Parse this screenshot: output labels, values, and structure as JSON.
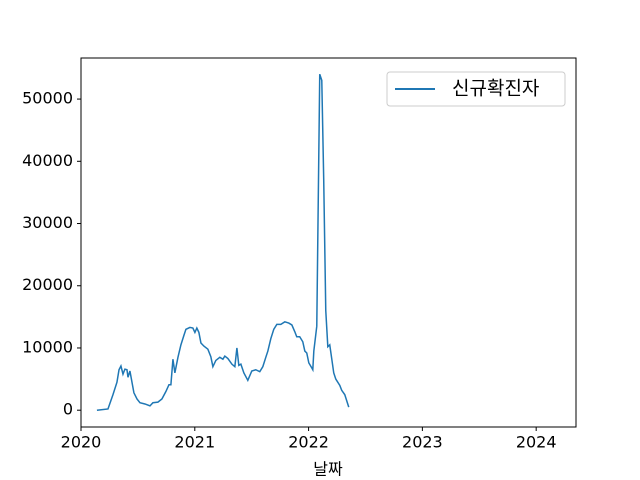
{
  "chart_data": {
    "type": "line",
    "xlabel": "날짜",
    "xlim": [
      2020,
      2024.35
    ],
    "xticks": [
      2020,
      2021,
      2022,
      2023,
      2024
    ],
    "ylim": [
      -2700,
      56600
    ],
    "yticks": [
      0,
      10000,
      20000,
      30000,
      40000,
      50000
    ],
    "legend": "upper right",
    "series": [
      {
        "name": "신규확진자",
        "color": "#1f77b4",
        "x": [
          2020.14,
          2020.237,
          2020.281,
          2020.316,
          2020.334,
          2020.351,
          2020.369,
          2020.386,
          2020.404,
          2020.413,
          2020.43,
          2020.448,
          2020.465,
          2020.492,
          2020.518,
          2020.562,
          2020.606,
          2020.632,
          2020.676,
          2020.711,
          2020.746,
          2020.773,
          2020.79,
          2020.808,
          2020.825,
          2020.852,
          2020.878,
          2020.904,
          2020.922,
          2020.957,
          2020.983,
          2021.001,
          2021.018,
          2021.036,
          2021.054,
          2021.08,
          2021.115,
          2021.141,
          2021.159,
          2021.185,
          2021.22,
          2021.247,
          2021.264,
          2021.291,
          2021.326,
          2021.352,
          2021.37,
          2021.387,
          2021.405,
          2021.431,
          2021.466,
          2021.501,
          2021.536,
          2021.571,
          2021.598,
          2021.624,
          2021.642,
          2021.668,
          2021.694,
          2021.721,
          2021.756,
          2021.791,
          2021.826,
          2021.853,
          2021.879,
          2021.896,
          2021.922,
          2021.949,
          2021.967,
          2021.984,
          2022.002,
          2022.028,
          2022.037,
          2022.046,
          2022.072,
          2022.098,
          2022.116,
          2022.133,
          2022.151,
          2022.169,
          2022.186,
          2022.204,
          2022.221,
          2022.239,
          2022.274,
          2022.291,
          2022.318,
          2022.353
        ],
        "values": [
          0,
          200,
          2500,
          4500,
          6500,
          7100,
          5800,
          6600,
          6500,
          5300,
          6300,
          4500,
          2800,
          1800,
          1200,
          1000,
          700,
          1200,
          1300,
          1800,
          3000,
          4100,
          4100,
          8200,
          6000,
          8500,
          10500,
          12000,
          13000,
          13300,
          13200,
          12500,
          13200,
          12500,
          10800,
          10300,
          9800,
          8600,
          7000,
          8000,
          8500,
          8200,
          8700,
          8300,
          7400,
          7000,
          10000,
          7200,
          7400,
          6000,
          4800,
          6300,
          6500,
          6200,
          7000,
          8500,
          9500,
          11500,
          13000,
          13800,
          13800,
          14200,
          14000,
          13700,
          12600,
          11800,
          11800,
          11000,
          9500,
          9200,
          7600,
          6800,
          6500,
          9500,
          13500,
          54000,
          53000,
          37000,
          16000,
          10200,
          10500,
          8200,
          6000,
          5000,
          4000,
          3200,
          2500,
          500
        ]
      }
    ]
  }
}
